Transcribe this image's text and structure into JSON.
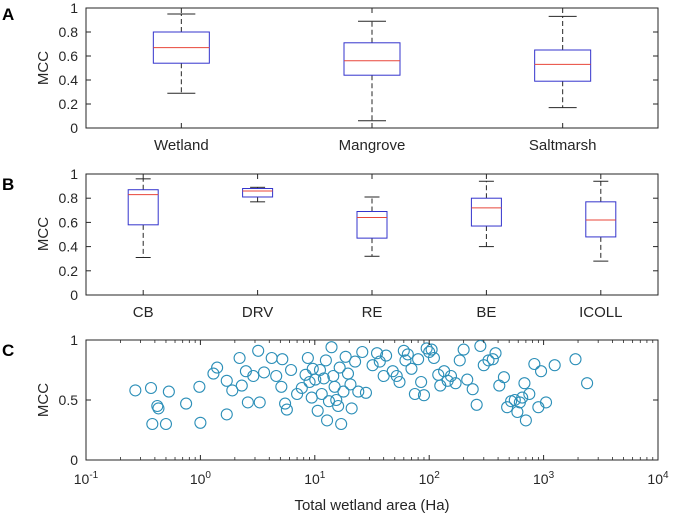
{
  "chart_data": [
    {
      "panel": "A",
      "type": "box",
      "ylabel": "MCC",
      "ylim": [
        0,
        1
      ],
      "yticks": [
        "0",
        "0.2",
        "0.4",
        "0.6",
        "0.8",
        "1"
      ],
      "categories": [
        "Wetland",
        "Mangrove",
        "Saltmarsh"
      ],
      "boxes": [
        {
          "whisker_low": 0.29,
          "q1": 0.54,
          "median": 0.67,
          "q3": 0.8,
          "whisker_high": 0.95
        },
        {
          "whisker_low": 0.06,
          "q1": 0.44,
          "median": 0.56,
          "q3": 0.71,
          "whisker_high": 0.89
        },
        {
          "whisker_low": 0.17,
          "q1": 0.39,
          "median": 0.53,
          "q3": 0.65,
          "whisker_high": 0.93
        }
      ]
    },
    {
      "panel": "B",
      "type": "box",
      "ylabel": "MCC",
      "ylim": [
        0,
        1
      ],
      "yticks": [
        "0",
        "0.2",
        "0.4",
        "0.6",
        "0.8",
        "1"
      ],
      "categories": [
        "CB",
        "DRV",
        "RE",
        "BE",
        "ICOLL"
      ],
      "boxes": [
        {
          "whisker_low": 0.31,
          "q1": 0.58,
          "median": 0.83,
          "q3": 0.87,
          "whisker_high": 0.96
        },
        {
          "whisker_low": 0.77,
          "q1": 0.81,
          "median": 0.86,
          "q3": 0.88,
          "whisker_high": 0.89
        },
        {
          "whisker_low": 0.32,
          "q1": 0.47,
          "median": 0.64,
          "q3": 0.69,
          "whisker_high": 0.81
        },
        {
          "whisker_low": 0.4,
          "q1": 0.57,
          "median": 0.72,
          "q3": 0.8,
          "whisker_high": 0.94
        },
        {
          "whisker_low": 0.28,
          "q1": 0.48,
          "median": 0.62,
          "q3": 0.77,
          "whisker_high": 0.94
        }
      ]
    },
    {
      "panel": "C",
      "type": "scatter",
      "ylabel": "MCC",
      "xlabel": "Total wetland area (Ha)",
      "xscale": "log",
      "xlim": [
        0.1,
        10000
      ],
      "ylim": [
        0,
        1
      ],
      "yticks": [
        "0",
        "0.5",
        "1"
      ],
      "xticks": [
        {
          "base": "10",
          "exp": "-1"
        },
        {
          "base": "10",
          "exp": "0"
        },
        {
          "base": "10",
          "exp": "1"
        },
        {
          "base": "10",
          "exp": "2"
        },
        {
          "base": "10",
          "exp": "3"
        },
        {
          "base": "10",
          "exp": "4"
        }
      ],
      "points": [
        [
          0.27,
          0.58
        ],
        [
          0.37,
          0.6
        ],
        [
          0.38,
          0.3
        ],
        [
          0.42,
          0.45
        ],
        [
          0.43,
          0.43
        ],
        [
          0.5,
          0.3
        ],
        [
          0.53,
          0.57
        ],
        [
          0.75,
          0.47
        ],
        [
          0.98,
          0.61
        ],
        [
          1.0,
          0.31
        ],
        [
          1.3,
          0.72
        ],
        [
          1.4,
          0.77
        ],
        [
          1.7,
          0.66
        ],
        [
          1.7,
          0.38
        ],
        [
          1.9,
          0.58
        ],
        [
          2.2,
          0.85
        ],
        [
          2.3,
          0.62
        ],
        [
          2.5,
          0.74
        ],
        [
          2.6,
          0.48
        ],
        [
          2.9,
          0.7
        ],
        [
          3.2,
          0.91
        ],
        [
          3.3,
          0.48
        ],
        [
          3.6,
          0.73
        ],
        [
          4.2,
          0.85
        ],
        [
          4.6,
          0.7
        ],
        [
          5.1,
          0.61
        ],
        [
          5.2,
          0.84
        ],
        [
          5.5,
          0.47
        ],
        [
          5.7,
          0.42
        ],
        [
          6.2,
          0.75
        ],
        [
          7.0,
          0.55
        ],
        [
          7.7,
          0.6
        ],
        [
          8.3,
          0.71
        ],
        [
          8.7,
          0.85
        ],
        [
          9.0,
          0.65
        ],
        [
          9.4,
          0.52
        ],
        [
          9.6,
          0.76
        ],
        [
          10.1,
          0.67
        ],
        [
          10.6,
          0.41
        ],
        [
          11.1,
          0.75
        ],
        [
          11.5,
          0.55
        ],
        [
          12.0,
          0.68
        ],
        [
          12.5,
          0.83
        ],
        [
          12.8,
          0.33
        ],
        [
          13.3,
          0.49
        ],
        [
          14.0,
          0.94
        ],
        [
          14.5,
          0.7
        ],
        [
          14.9,
          0.61
        ],
        [
          15.4,
          0.5
        ],
        [
          16.0,
          0.45
        ],
        [
          16.5,
          0.77
        ],
        [
          17.0,
          0.3
        ],
        [
          17.8,
          0.57
        ],
        [
          18.6,
          0.86
        ],
        [
          19.5,
          0.72
        ],
        [
          20.5,
          0.63
        ],
        [
          21.0,
          0.43
        ],
        [
          22.5,
          0.82
        ],
        [
          24.0,
          0.57
        ],
        [
          26.0,
          0.9
        ],
        [
          28.0,
          0.56
        ],
        [
          32.0,
          0.79
        ],
        [
          35.0,
          0.89
        ],
        [
          37.0,
          0.82
        ],
        [
          40.0,
          0.7
        ],
        [
          42.0,
          0.87
        ],
        [
          48.0,
          0.74
        ],
        [
          52.0,
          0.7
        ],
        [
          55.0,
          0.65
        ],
        [
          60.0,
          0.91
        ],
        [
          62.0,
          0.83
        ],
        [
          65.0,
          0.88
        ],
        [
          70.0,
          0.76
        ],
        [
          75.0,
          0.55
        ],
        [
          80.0,
          0.84
        ],
        [
          85.0,
          0.65
        ],
        [
          90.0,
          0.54
        ],
        [
          95.0,
          0.93
        ],
        [
          100.0,
          0.9
        ],
        [
          105.0,
          0.92
        ],
        [
          110.0,
          0.85
        ],
        [
          120.0,
          0.71
        ],
        [
          125.0,
          0.62
        ],
        [
          135.0,
          0.74
        ],
        [
          145.0,
          0.66
        ],
        [
          155.0,
          0.7
        ],
        [
          170.0,
          0.64
        ],
        [
          185.0,
          0.83
        ],
        [
          200.0,
          0.92
        ],
        [
          215.0,
          0.67
        ],
        [
          240.0,
          0.59
        ],
        [
          260.0,
          0.46
        ],
        [
          280.0,
          0.95
        ],
        [
          300.0,
          0.79
        ],
        [
          330.0,
          0.83
        ],
        [
          360.0,
          0.84
        ],
        [
          380.0,
          0.89
        ],
        [
          410.0,
          0.62
        ],
        [
          450.0,
          0.69
        ],
        [
          480.0,
          0.44
        ],
        [
          520.0,
          0.49
        ],
        [
          560.0,
          0.5
        ],
        [
          590.0,
          0.4
        ],
        [
          620.0,
          0.48
        ],
        [
          650.0,
          0.52
        ],
        [
          680.0,
          0.64
        ],
        [
          700.0,
          0.33
        ],
        [
          750.0,
          0.55
        ],
        [
          830.0,
          0.8
        ],
        [
          900.0,
          0.44
        ],
        [
          950.0,
          0.74
        ],
        [
          1050.0,
          0.48
        ],
        [
          1250.0,
          0.79
        ],
        [
          1900.0,
          0.84
        ],
        [
          2400.0,
          0.64
        ]
      ]
    }
  ],
  "panel_labels": [
    "A",
    "B",
    "C"
  ],
  "colors": {
    "box": "#3333cc",
    "median": "#e8463a",
    "whisker": "#262626",
    "marker": "#2c8fb8"
  }
}
